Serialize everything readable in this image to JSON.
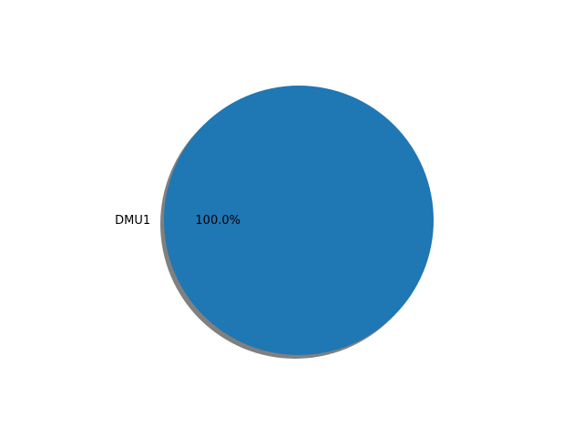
{
  "chart_data": {
    "type": "pie",
    "title": "",
    "slices": [
      {
        "label": "DMU1",
        "value": 100.0,
        "percent_label": "100.0%",
        "color": "#1f77b4"
      }
    ],
    "shadow": true,
    "shadow_color": "#808080",
    "legend": "none"
  }
}
